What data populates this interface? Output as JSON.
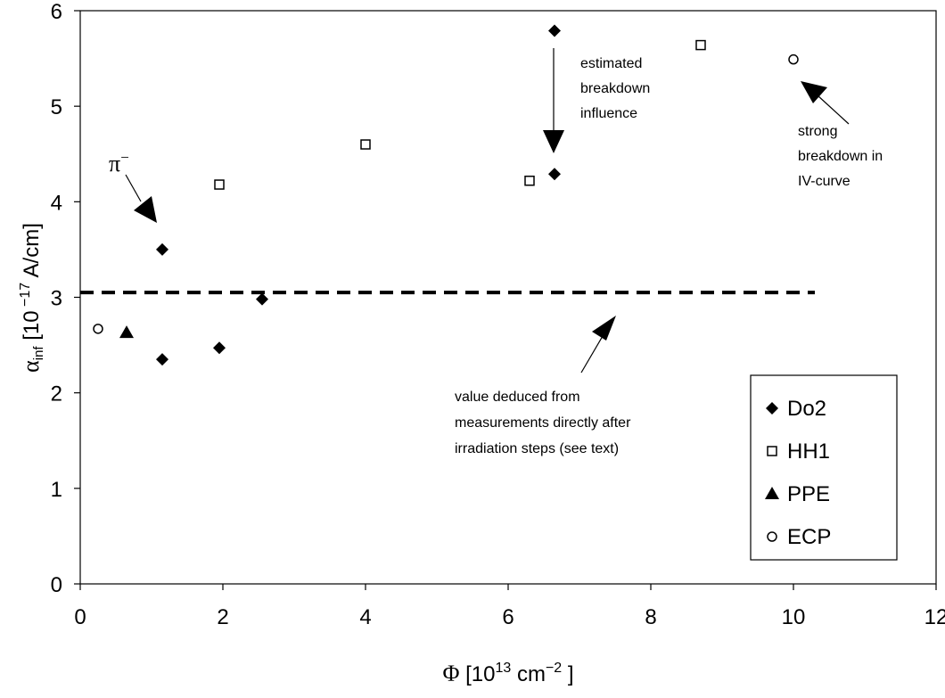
{
  "chart_data": {
    "type": "scatter",
    "xlim": [
      0,
      12
    ],
    "ylim": [
      0,
      6
    ],
    "x_ticks": [
      "0",
      "2",
      "4",
      "6",
      "8",
      "10",
      "12"
    ],
    "y_ticks": [
      "0",
      "1",
      "2",
      "3",
      "4",
      "5",
      "6"
    ],
    "grid": false,
    "legend_position": "bottom-right",
    "xlabel": {
      "symbol": "Φ",
      "open": " [10",
      "exp1": "13",
      "unit": " cm",
      "exp2": "−2",
      "close": " ]"
    },
    "ylabel": {
      "symbol": "α",
      "sub": "inf",
      "open": " [10",
      "exp": " −17",
      "unit": " A/cm]"
    },
    "reference_line": {
      "y": 3.05,
      "x_range": [
        0,
        10.3
      ],
      "style": "dashed"
    },
    "series": [
      {
        "name": "Do2",
        "marker": "diamond",
        "points": [
          [
            1.15,
            3.5
          ],
          [
            1.15,
            2.35
          ],
          [
            1.95,
            2.47
          ],
          [
            2.55,
            2.98
          ],
          [
            6.65,
            4.29
          ],
          [
            6.65,
            5.79
          ]
        ]
      },
      {
        "name": "HH1",
        "marker": "square-open",
        "points": [
          [
            1.95,
            4.18
          ],
          [
            4.0,
            4.6
          ],
          [
            6.3,
            4.22
          ],
          [
            8.7,
            5.64
          ]
        ]
      },
      {
        "name": "PPE",
        "marker": "triangle",
        "points": [
          [
            0.65,
            2.63
          ]
        ]
      },
      {
        "name": "ECP",
        "marker": "circle-open",
        "points": [
          [
            0.25,
            2.67
          ],
          [
            10.0,
            5.49
          ]
        ]
      }
    ],
    "annotations": [
      {
        "id": "pi",
        "base": "π",
        "sup": "−"
      },
      {
        "id": "breakdown",
        "lines": [
          "estimated",
          "breakdown",
          "influence"
        ]
      },
      {
        "id": "strong",
        "lines": [
          "strong",
          "breakdown in",
          "IV-curve"
        ]
      },
      {
        "id": "value",
        "lines": [
          "value deduced from",
          "measurements directly after",
          "irradiation steps (see text)"
        ]
      }
    ]
  }
}
